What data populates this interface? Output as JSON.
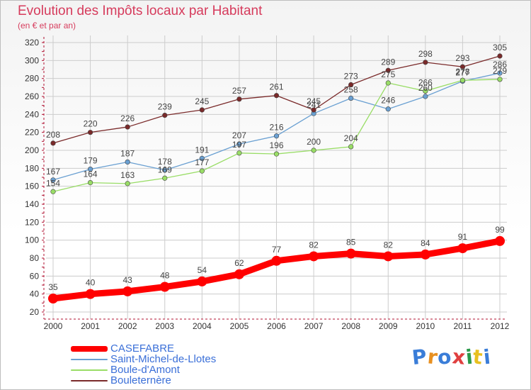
{
  "header": {
    "title": "Evolution des Impôts locaux par Habitant",
    "subtitle": "(en € et par an)"
  },
  "colors": {
    "title": "#d63b5c",
    "axis": "#b01030",
    "grid": "#cccccc",
    "legend_text": "#3a6fd8"
  },
  "chart_data": {
    "type": "line",
    "x": [
      "2000",
      "2001",
      "2002",
      "2003",
      "2004",
      "2005",
      "2006",
      "2007",
      "2008",
      "2009",
      "2010",
      "2011",
      "2012"
    ],
    "ylim": [
      20,
      320
    ],
    "yticks": [
      20,
      40,
      60,
      80,
      100,
      120,
      140,
      160,
      180,
      200,
      220,
      240,
      260,
      280,
      300,
      320
    ],
    "grid": true,
    "legend_position": "bottom-left",
    "series": [
      {
        "name": "CASEFABRE",
        "color": "#ff0000",
        "values": [
          35,
          40,
          43,
          48,
          54,
          62,
          77,
          82,
          85,
          82,
          84,
          91,
          99
        ]
      },
      {
        "name": "Saint-Michel-de-Llotes",
        "color": "#6aa0d2",
        "values": [
          167,
          179,
          187,
          178,
          191,
          207,
          216,
          241,
          258,
          246,
          260,
          277,
          286
        ]
      },
      {
        "name": "Boule-d'Amont",
        "color": "#99dd66",
        "values": [
          154,
          164,
          163,
          169,
          177,
          197,
          196,
          200,
          204,
          275,
          266,
          278,
          279
        ]
      },
      {
        "name": "Bouleternère",
        "color": "#7a2a2a",
        "values": [
          208,
          220,
          226,
          239,
          245,
          257,
          261,
          245,
          273,
          289,
          298,
          293,
          305
        ]
      }
    ]
  },
  "logo": {
    "text": "Proxiti",
    "letter_colors": [
      "#3a7dd8",
      "#e89020",
      "#3a7dd8",
      "#e04040",
      "#2a9a4a",
      "#e8c020",
      "#3a7dd8"
    ]
  }
}
